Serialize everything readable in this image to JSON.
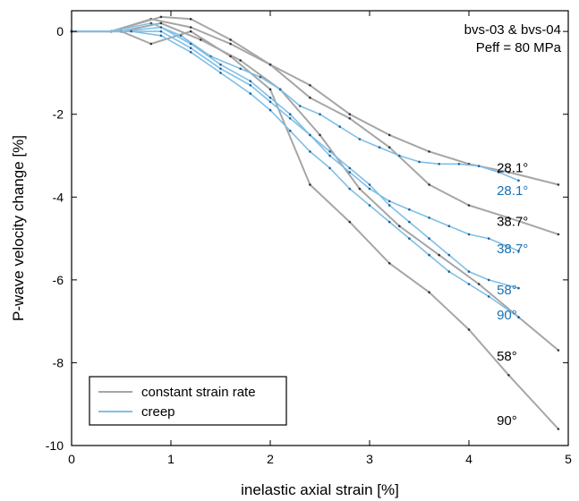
{
  "chart_data": {
    "type": "line",
    "xlabel": "inelastic axial strain [%]",
    "ylabel": "P-wave velocity change [%]",
    "xlim": [
      0,
      5
    ],
    "ylim": [
      -10,
      0.5
    ],
    "x_ticks": [
      0,
      1,
      2,
      3,
      4,
      5
    ],
    "x_tick_labels": [
      "0",
      "1",
      "2",
      "3",
      "4",
      "5"
    ],
    "y_ticks": [
      0,
      -2,
      -4,
      -6,
      -8,
      -10
    ],
    "y_tick_labels": [
      "0",
      "-2",
      "-4",
      "-6",
      "-8",
      "-10"
    ],
    "grid": false,
    "legend_position": "bottom-left",
    "annotation": {
      "line1": "bvs-03 & bvs-04",
      "line2": "Peff = 80 MPa"
    },
    "legend": [
      {
        "label": "constant strain rate",
        "color": "#a6a6a6"
      },
      {
        "label": "creep",
        "color": "#7fbfe6"
      }
    ],
    "series": [
      {
        "group": "constant strain rate",
        "color": "#a6a6a6",
        "label": "28.1°",
        "label_color": "#000000",
        "label_pos": [
          4.28,
          -3.4
        ],
        "points": [
          [
            0,
            0
          ],
          [
            0.4,
            0
          ],
          [
            0.8,
            0.3
          ],
          [
            1.2,
            0.1
          ],
          [
            1.6,
            -0.3
          ],
          [
            2.0,
            -0.8
          ],
          [
            2.4,
            -1.3
          ],
          [
            2.8,
            -2.0
          ],
          [
            3.2,
            -2.5
          ],
          [
            3.6,
            -2.9
          ],
          [
            4.0,
            -3.2
          ],
          [
            4.4,
            -3.4
          ],
          [
            4.9,
            -3.7
          ]
        ]
      },
      {
        "group": "constant strain rate",
        "color": "#a6a6a6",
        "label": "38.7°",
        "label_color": "#000000",
        "label_pos": [
          4.28,
          -4.7
        ],
        "points": [
          [
            0,
            0
          ],
          [
            0.4,
            0
          ],
          [
            0.9,
            0.35
          ],
          [
            1.2,
            0.3
          ],
          [
            1.6,
            -0.2
          ],
          [
            2.0,
            -0.8
          ],
          [
            2.4,
            -1.6
          ],
          [
            2.8,
            -2.1
          ],
          [
            3.2,
            -2.8
          ],
          [
            3.6,
            -3.7
          ],
          [
            4.0,
            -4.2
          ],
          [
            4.4,
            -4.5
          ],
          [
            4.9,
            -4.9
          ]
        ]
      },
      {
        "group": "constant strain rate",
        "color": "#a6a6a6",
        "label": "58°",
        "label_color": "#000000",
        "label_pos": [
          4.28,
          -7.95
        ],
        "points": [
          [
            0,
            0
          ],
          [
            0.5,
            0
          ],
          [
            0.9,
            0.2
          ],
          [
            1.3,
            -0.2
          ],
          [
            1.7,
            -0.7
          ],
          [
            2.1,
            -1.4
          ],
          [
            2.5,
            -2.5
          ],
          [
            2.9,
            -3.8
          ],
          [
            3.3,
            -4.7
          ],
          [
            3.7,
            -5.4
          ],
          [
            4.1,
            -6.1
          ],
          [
            4.5,
            -6.9
          ],
          [
            4.9,
            -7.7
          ]
        ]
      },
      {
        "group": "constant strain rate",
        "color": "#a6a6a6",
        "label": "90°",
        "label_color": "#000000",
        "label_pos": [
          4.28,
          -9.5
        ],
        "points": [
          [
            0,
            0
          ],
          [
            0.5,
            0
          ],
          [
            0.8,
            -0.3
          ],
          [
            1.2,
            0
          ],
          [
            1.6,
            -0.6
          ],
          [
            2.0,
            -1.4
          ],
          [
            2.4,
            -3.7
          ],
          [
            2.8,
            -4.6
          ],
          [
            3.2,
            -5.6
          ],
          [
            3.6,
            -6.3
          ],
          [
            4.0,
            -7.2
          ],
          [
            4.4,
            -8.3
          ],
          [
            4.9,
            -9.6
          ]
        ]
      },
      {
        "group": "creep",
        "color": "#7fbfe6",
        "step_color": "#1f5f9a",
        "label": "28.1°",
        "label_color": "#1a6fb0",
        "label_pos": [
          4.28,
          -3.95
        ],
        "points": [
          [
            0,
            0
          ],
          [
            0.4,
            0
          ],
          [
            0.8,
            0.2
          ],
          [
            1.1,
            -0.1
          ],
          [
            1.4,
            -0.6
          ],
          [
            1.7,
            -0.9
          ],
          [
            1.9,
            -1.1
          ],
          [
            2.1,
            -1.4
          ],
          [
            2.3,
            -1.8
          ],
          [
            2.5,
            -2.0
          ],
          [
            2.7,
            -2.3
          ],
          [
            2.9,
            -2.6
          ],
          [
            3.1,
            -2.8
          ],
          [
            3.3,
            -3.0
          ],
          [
            3.5,
            -3.15
          ],
          [
            3.7,
            -3.2
          ],
          [
            3.9,
            -3.2
          ],
          [
            4.1,
            -3.25
          ],
          [
            4.3,
            -3.4
          ],
          [
            4.5,
            -3.6
          ]
        ]
      },
      {
        "group": "creep",
        "color": "#7fbfe6",
        "step_color": "#1f5f9a",
        "label": "38.7°",
        "label_color": "#1a6fb0",
        "label_pos": [
          4.28,
          -5.35
        ],
        "points": [
          [
            0,
            0
          ],
          [
            0.5,
            0
          ],
          [
            0.9,
            0.1
          ],
          [
            1.2,
            -0.3
          ],
          [
            1.5,
            -0.8
          ],
          [
            1.8,
            -1.2
          ],
          [
            2.0,
            -1.6
          ],
          [
            2.2,
            -2.0
          ],
          [
            2.4,
            -2.5
          ],
          [
            2.6,
            -3.0
          ],
          [
            2.8,
            -3.4
          ],
          [
            3.0,
            -3.8
          ],
          [
            3.2,
            -4.1
          ],
          [
            3.4,
            -4.3
          ],
          [
            3.6,
            -4.5
          ],
          [
            3.8,
            -4.7
          ],
          [
            4.0,
            -4.9
          ],
          [
            4.2,
            -5.0
          ],
          [
            4.5,
            -5.3
          ]
        ]
      },
      {
        "group": "creep",
        "color": "#7fbfe6",
        "step_color": "#1f5f9a",
        "label": "58°",
        "label_color": "#1a6fb0",
        "label_pos": [
          4.28,
          -6.35
        ],
        "points": [
          [
            0,
            0
          ],
          [
            0.5,
            0
          ],
          [
            0.9,
            0
          ],
          [
            1.2,
            -0.4
          ],
          [
            1.5,
            -0.9
          ],
          [
            1.8,
            -1.3
          ],
          [
            2.0,
            -1.7
          ],
          [
            2.2,
            -2.1
          ],
          [
            2.4,
            -2.5
          ],
          [
            2.6,
            -2.9
          ],
          [
            2.8,
            -3.3
          ],
          [
            3.0,
            -3.7
          ],
          [
            3.2,
            -4.2
          ],
          [
            3.4,
            -4.6
          ],
          [
            3.6,
            -5.0
          ],
          [
            3.8,
            -5.4
          ],
          [
            4.0,
            -5.8
          ],
          [
            4.2,
            -6.0
          ],
          [
            4.5,
            -6.2
          ]
        ]
      },
      {
        "group": "creep",
        "color": "#7fbfe6",
        "step_color": "#1f5f9a",
        "label": "90°",
        "label_color": "#1a6fb0",
        "label_pos": [
          4.28,
          -6.95
        ],
        "points": [
          [
            0,
            0
          ],
          [
            0.6,
            0
          ],
          [
            0.9,
            -0.1
          ],
          [
            1.2,
            -0.5
          ],
          [
            1.5,
            -1.0
          ],
          [
            1.8,
            -1.5
          ],
          [
            2.0,
            -1.9
          ],
          [
            2.2,
            -2.4
          ],
          [
            2.4,
            -2.9
          ],
          [
            2.6,
            -3.3
          ],
          [
            2.8,
            -3.8
          ],
          [
            3.0,
            -4.2
          ],
          [
            3.2,
            -4.6
          ],
          [
            3.4,
            -5.0
          ],
          [
            3.6,
            -5.4
          ],
          [
            3.8,
            -5.8
          ],
          [
            4.0,
            -6.1
          ],
          [
            4.2,
            -6.4
          ],
          [
            4.5,
            -6.9
          ]
        ]
      }
    ]
  }
}
